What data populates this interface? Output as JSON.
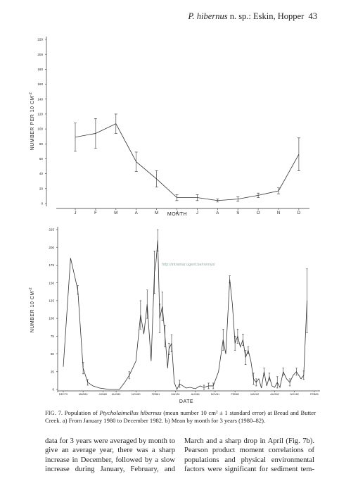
{
  "header": {
    "species": "P. hibernus",
    "rest": "n. sp.: Eskin, Hopper",
    "page": "43"
  },
  "watermark": "http://intramar.ugent.be/nemys/",
  "chart_data": [
    {
      "type": "line",
      "y_label": "NUMBER PER 10 CM",
      "y_label_sup": "-2",
      "x_label": "MONTH",
      "categories": [
        "J",
        "F",
        "M",
        "A",
        "M",
        "J",
        "J",
        "A",
        "S",
        "O",
        "N",
        "D"
      ],
      "values": [
        89,
        94,
        107,
        56,
        33,
        8,
        8,
        4,
        6,
        11,
        17,
        66
      ],
      "errors": [
        19,
        20,
        13,
        13,
        11,
        4,
        4,
        2,
        3,
        3,
        4,
        22
      ],
      "color": "#333",
      "ylim": [
        0,
        220
      ],
      "yticks": [
        0,
        20,
        40,
        60,
        80,
        100,
        120,
        140,
        160,
        180,
        200,
        220
      ]
    },
    {
      "type": "line",
      "y_label": "NUMBER  10 CM",
      "y_label_sup": "-2",
      "x_label": "DATE",
      "x": [
        0,
        1.1,
        2.2,
        3.0,
        3.7,
        4.5,
        5.5,
        7.0,
        8.5,
        9.3,
        10.0,
        11.0,
        11.7,
        12.2,
        12.7,
        13.3,
        13.8,
        14.0,
        14.3,
        14.6,
        15.0,
        15.4,
        15.8,
        16.0,
        16.4,
        16.8,
        17.2,
        17.6,
        18.1,
        18.6,
        19.2,
        20.0,
        20.7,
        21.3,
        22.0,
        22.7,
        23.5,
        24.2,
        24.6,
        25.2,
        25.6,
        26.0,
        26.4,
        26.8,
        27.2,
        27.6,
        28.0,
        28.4,
        28.8,
        29.2,
        29.6,
        30.0,
        30.4,
        30.8,
        31.2,
        31.6,
        32.0,
        32.4,
        32.8,
        33.3,
        33.8,
        34.3,
        34.8,
        35.3,
        36.0,
        36.4,
        36.9
      ],
      "values": [
        32,
        185,
        140,
        30,
        10,
        5,
        2,
        0,
        0,
        10,
        20,
        40,
        105,
        78,
        120,
        40,
        165,
        175,
        210,
        100,
        117,
        75,
        30,
        57,
        65,
        10,
        0,
        8,
        5,
        2,
        3,
        1,
        5,
        3,
        5,
        5,
        25,
        70,
        50,
        155,
        120,
        65,
        75,
        60,
        70,
        45,
        55,
        40,
        15,
        10,
        15,
        2,
        25,
        5,
        18,
        5,
        3,
        10,
        3,
        25,
        15,
        10,
        20,
        25,
        15,
        20,
        125
      ],
      "errors": [
        null,
        null,
        6,
        8,
        4,
        null,
        null,
        null,
        null,
        null,
        5,
        null,
        20,
        null,
        20,
        null,
        30,
        null,
        15,
        20,
        20,
        15,
        null,
        8,
        12,
        null,
        null,
        5,
        null,
        null,
        null,
        null,
        null,
        3,
        4,
        4,
        null,
        15,
        null,
        5,
        null,
        10,
        10,
        null,
        8,
        10,
        5,
        null,
        8,
        5,
        null,
        null,
        5,
        null,
        5,
        null,
        null,
        8,
        null,
        5,
        null,
        5,
        null,
        5,
        null,
        6,
        45
      ],
      "color": "#333",
      "xlim": [
        -0.85,
        38.87
      ],
      "xticks": [
        {
          "value": 0,
          "label": "DEC79"
        },
        {
          "value": 3,
          "label": "MAR80"
        },
        {
          "value": 6,
          "label": "JUN80"
        },
        {
          "value": 8,
          "label": "AUG80"
        },
        {
          "value": 11,
          "label": "NOV80"
        },
        {
          "value": 14,
          "label": "FEB81"
        },
        {
          "value": 17,
          "label": "MAY81"
        },
        {
          "value": 20,
          "label": "AUG81"
        },
        {
          "value": 23,
          "label": "NOV81"
        },
        {
          "value": 26,
          "label": "FEB82"
        },
        {
          "value": 29,
          "label": "MAY82"
        },
        {
          "value": 32,
          "label": "AUG82"
        },
        {
          "value": 35,
          "label": "NOV82"
        },
        {
          "value": 38,
          "label": "FEB83"
        }
      ],
      "ylim": [
        0,
        225
      ],
      "yticks": [
        0,
        25,
        50,
        75,
        100,
        125,
        150,
        175,
        200,
        225
      ]
    }
  ],
  "caption": {
    "label": "FIG. 7.",
    "text_1": "Population of",
    "species": "Ptycholaimellus hibernus",
    "text_2": "(mean number 10 cm² ± 1 standard error) at Bread and Butter Creek. a) From January 1980 to December 1982. b) Mean by month for 3 years (1980–82)."
  },
  "body": {
    "left": "data for 3 years were averaged by month to give an average year, there was a sharp increase in December, followed by a slow increase during January, February, and",
    "right": "March and a sharp drop in April (Fig. 7b). Pearson product moment correlations of populations and physical environmental factors were significant for sediment tem-"
  }
}
